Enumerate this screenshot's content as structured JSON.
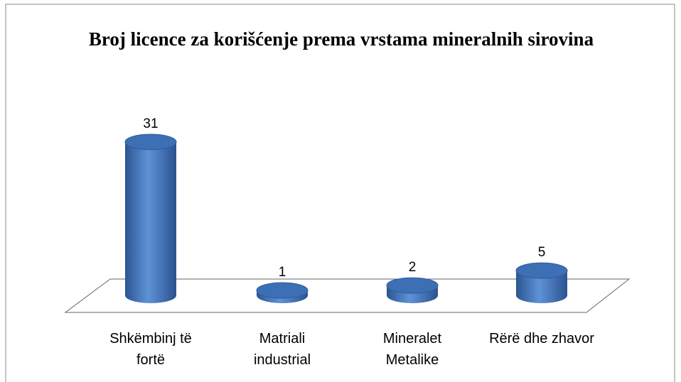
{
  "chart_data": {
    "type": "bar3d",
    "title": "Broj licence za korišćenje prema vrstama mineralnih sirovina",
    "categories": [
      "Shkëmbinj të fortë",
      "Matriali industrial",
      "Mineralet Metalike",
      "Rërë dhe zhavor"
    ],
    "values": [
      31,
      1,
      2,
      5
    ],
    "color": "#3d6fb5"
  }
}
